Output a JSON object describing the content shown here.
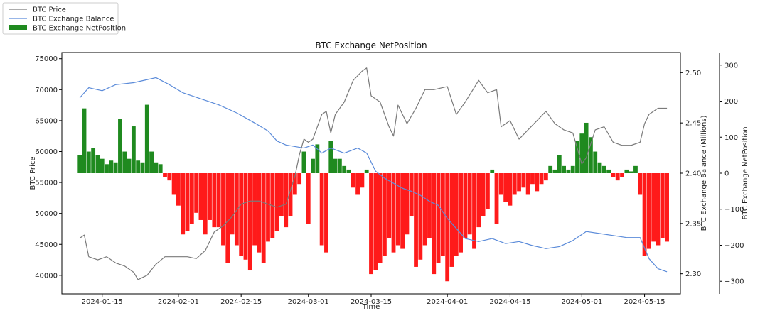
{
  "chart_data": {
    "type": "line",
    "title": "BTC Exchange NetPosition",
    "xlabel": "Time",
    "y_left_label": "BTC Price",
    "y_right_label": "BTC Exchange Balance (Millions)",
    "y_right2_label": "BTC Exchange NetPosition",
    "x_range": [
      "2024-01-06",
      "2024-05-23"
    ],
    "x_ticks": [
      "2024-01-15",
      "2024-02-01",
      "2024-02-15",
      "2024-03-01",
      "2024-03-15",
      "2024-04-01",
      "2024-04-15",
      "2024-05-01",
      "2024-05-15"
    ],
    "ylim_left": [
      37000,
      76000
    ],
    "y_left_ticks": [
      40000,
      45000,
      50000,
      55000,
      60000,
      65000,
      70000,
      75000
    ],
    "ylim_right": [
      2.28,
      2.52
    ],
    "y_right_ticks": [
      2.3,
      2.35,
      2.4,
      2.45,
      2.5
    ],
    "y_right_tick_labels": [
      "2.30",
      "2.35",
      "2.40",
      "2.45",
      "2.50"
    ],
    "ylim_right2": [
      -335,
      335
    ],
    "y_right2_ticks": [
      -300,
      -200,
      -100,
      0,
      100,
      200,
      300
    ],
    "y_right2_tick_labels": [
      "−300",
      "−200",
      "−100",
      "0",
      "100",
      "200",
      "300"
    ],
    "legend_position": "top-left outside",
    "grid": false,
    "colors": {
      "price": "#7a7a7a",
      "balance": "#5b8bd9",
      "netposition_positive": "#1f8a1f",
      "netposition_negative": "#ff1a1a"
    },
    "series": [
      {
        "name": "BTC Price",
        "axis": "left",
        "points": [
          [
            "2024-01-10",
            46000
          ],
          [
            "2024-01-11",
            46500
          ],
          [
            "2024-01-12",
            43000
          ],
          [
            "2024-01-14",
            42500
          ],
          [
            "2024-01-16",
            43000
          ],
          [
            "2024-01-18",
            42000
          ],
          [
            "2024-01-20",
            41500
          ],
          [
            "2024-01-22",
            40500
          ],
          [
            "2024-01-23",
            39300
          ],
          [
            "2024-01-25",
            40000
          ],
          [
            "2024-01-27",
            41800
          ],
          [
            "2024-01-29",
            43000
          ],
          [
            "2024-02-01",
            43000
          ],
          [
            "2024-02-03",
            43000
          ],
          [
            "2024-02-05",
            42700
          ],
          [
            "2024-02-07",
            44000
          ],
          [
            "2024-02-09",
            47000
          ],
          [
            "2024-02-11",
            48000
          ],
          [
            "2024-02-13",
            49500
          ],
          [
            "2024-02-15",
            51500
          ],
          [
            "2024-02-17",
            52000
          ],
          [
            "2024-02-19",
            52000
          ],
          [
            "2024-02-21",
            51500
          ],
          [
            "2024-02-23",
            51000
          ],
          [
            "2024-02-25",
            51500
          ],
          [
            "2024-02-27",
            56000
          ],
          [
            "2024-02-28",
            59500
          ],
          [
            "2024-02-29",
            62000
          ],
          [
            "2024-03-01",
            61500
          ],
          [
            "2024-03-02",
            62000
          ],
          [
            "2024-03-04",
            66000
          ],
          [
            "2024-03-05",
            66500
          ],
          [
            "2024-03-06",
            63000
          ],
          [
            "2024-03-07",
            66000
          ],
          [
            "2024-03-09",
            68000
          ],
          [
            "2024-03-11",
            71500
          ],
          [
            "2024-03-13",
            73000
          ],
          [
            "2024-03-14",
            73500
          ],
          [
            "2024-03-15",
            69000
          ],
          [
            "2024-03-17",
            68000
          ],
          [
            "2024-03-19",
            64000
          ],
          [
            "2024-03-20",
            62500
          ],
          [
            "2024-03-21",
            67500
          ],
          [
            "2024-03-23",
            64500
          ],
          [
            "2024-03-25",
            67000
          ],
          [
            "2024-03-27",
            70000
          ],
          [
            "2024-03-29",
            70000
          ],
          [
            "2024-04-01",
            70500
          ],
          [
            "2024-04-03",
            66000
          ],
          [
            "2024-04-05",
            68000
          ],
          [
            "2024-04-08",
            71500
          ],
          [
            "2024-04-10",
            69500
          ],
          [
            "2024-04-12",
            70000
          ],
          [
            "2024-04-13",
            64000
          ],
          [
            "2024-04-15",
            65000
          ],
          [
            "2024-04-17",
            62000
          ],
          [
            "2024-04-19",
            63500
          ],
          [
            "2024-04-21",
            65000
          ],
          [
            "2024-04-23",
            66500
          ],
          [
            "2024-04-25",
            64500
          ],
          [
            "2024-04-27",
            63500
          ],
          [
            "2024-04-29",
            63000
          ],
          [
            "2024-05-01",
            58000
          ],
          [
            "2024-05-02",
            59000
          ],
          [
            "2024-05-04",
            63500
          ],
          [
            "2024-05-06",
            64000
          ],
          [
            "2024-05-08",
            61500
          ],
          [
            "2024-05-10",
            61000
          ],
          [
            "2024-05-12",
            61000
          ],
          [
            "2024-05-14",
            61500
          ],
          [
            "2024-05-15",
            64500
          ],
          [
            "2024-05-16",
            66000
          ],
          [
            "2024-05-18",
            67000
          ],
          [
            "2024-05-20",
            67000
          ]
        ]
      },
      {
        "name": "BTC Exchange Balance",
        "axis": "right",
        "points": [
          [
            "2024-01-10",
            2.475
          ],
          [
            "2024-01-12",
            2.485
          ],
          [
            "2024-01-15",
            2.482
          ],
          [
            "2024-01-18",
            2.488
          ],
          [
            "2024-01-22",
            2.49
          ],
          [
            "2024-01-25",
            2.493
          ],
          [
            "2024-01-27",
            2.495
          ],
          [
            "2024-01-30",
            2.488
          ],
          [
            "2024-02-02",
            2.48
          ],
          [
            "2024-02-06",
            2.474
          ],
          [
            "2024-02-10",
            2.468
          ],
          [
            "2024-02-14",
            2.46
          ],
          [
            "2024-02-18",
            2.45
          ],
          [
            "2024-02-21",
            2.442
          ],
          [
            "2024-02-23",
            2.432
          ],
          [
            "2024-02-25",
            2.428
          ],
          [
            "2024-02-29",
            2.425
          ],
          [
            "2024-03-02",
            2.428
          ],
          [
            "2024-03-04",
            2.42
          ],
          [
            "2024-03-06",
            2.425
          ],
          [
            "2024-03-09",
            2.42
          ],
          [
            "2024-03-12",
            2.425
          ],
          [
            "2024-03-14",
            2.42
          ],
          [
            "2024-03-16",
            2.402
          ],
          [
            "2024-03-18",
            2.395
          ],
          [
            "2024-03-20",
            2.39
          ],
          [
            "2024-03-22",
            2.385
          ],
          [
            "2024-03-24",
            2.382
          ],
          [
            "2024-03-26",
            2.378
          ],
          [
            "2024-03-28",
            2.372
          ],
          [
            "2024-03-30",
            2.368
          ],
          [
            "2024-04-01",
            2.355
          ],
          [
            "2024-04-03",
            2.345
          ],
          [
            "2024-04-05",
            2.335
          ],
          [
            "2024-04-08",
            2.332
          ],
          [
            "2024-04-11",
            2.335
          ],
          [
            "2024-04-14",
            2.33
          ],
          [
            "2024-04-17",
            2.332
          ],
          [
            "2024-04-20",
            2.328
          ],
          [
            "2024-04-23",
            2.325
          ],
          [
            "2024-04-26",
            2.327
          ],
          [
            "2024-04-29",
            2.333
          ],
          [
            "2024-05-02",
            2.342
          ],
          [
            "2024-05-05",
            2.34
          ],
          [
            "2024-05-08",
            2.338
          ],
          [
            "2024-05-11",
            2.336
          ],
          [
            "2024-05-14",
            2.336
          ],
          [
            "2024-05-16",
            2.315
          ],
          [
            "2024-05-18",
            2.305
          ],
          [
            "2024-05-20",
            2.302
          ]
        ]
      },
      {
        "name": "BTC Exchange NetPosition",
        "axis": "right2",
        "type": "bar",
        "points": [
          [
            "2024-01-10",
            50
          ],
          [
            "2024-01-11",
            180
          ],
          [
            "2024-01-12",
            60
          ],
          [
            "2024-01-13",
            70
          ],
          [
            "2024-01-14",
            50
          ],
          [
            "2024-01-15",
            40
          ],
          [
            "2024-01-16",
            25
          ],
          [
            "2024-01-17",
            35
          ],
          [
            "2024-01-18",
            30
          ],
          [
            "2024-01-19",
            150
          ],
          [
            "2024-01-20",
            60
          ],
          [
            "2024-01-21",
            40
          ],
          [
            "2024-01-22",
            130
          ],
          [
            "2024-01-23",
            35
          ],
          [
            "2024-01-24",
            30
          ],
          [
            "2024-01-25",
            190
          ],
          [
            "2024-01-26",
            60
          ],
          [
            "2024-01-27",
            30
          ],
          [
            "2024-01-28",
            25
          ],
          [
            "2024-01-29",
            -10
          ],
          [
            "2024-01-30",
            -20
          ],
          [
            "2024-01-31",
            -60
          ],
          [
            "2024-02-01",
            -90
          ],
          [
            "2024-02-02",
            -170
          ],
          [
            "2024-02-03",
            -160
          ],
          [
            "2024-02-04",
            -140
          ],
          [
            "2024-02-05",
            -110
          ],
          [
            "2024-02-06",
            -130
          ],
          [
            "2024-02-07",
            -170
          ],
          [
            "2024-02-08",
            -130
          ],
          [
            "2024-02-09",
            -150
          ],
          [
            "2024-02-10",
            -150
          ],
          [
            "2024-02-11",
            -200
          ],
          [
            "2024-02-12",
            -250
          ],
          [
            "2024-02-13",
            -170
          ],
          [
            "2024-02-14",
            -200
          ],
          [
            "2024-02-15",
            -230
          ],
          [
            "2024-02-16",
            -240
          ],
          [
            "2024-02-17",
            -270
          ],
          [
            "2024-02-18",
            -200
          ],
          [
            "2024-02-19",
            -220
          ],
          [
            "2024-02-20",
            -250
          ],
          [
            "2024-02-21",
            -190
          ],
          [
            "2024-02-22",
            -180
          ],
          [
            "2024-02-23",
            -160
          ],
          [
            "2024-02-24",
            -120
          ],
          [
            "2024-02-25",
            -150
          ],
          [
            "2024-02-26",
            -120
          ],
          [
            "2024-02-27",
            -60
          ],
          [
            "2024-02-28",
            -30
          ],
          [
            "2024-02-29",
            60
          ],
          [
            "2024-03-01",
            -140
          ],
          [
            "2024-03-02",
            40
          ],
          [
            "2024-03-03",
            80
          ],
          [
            "2024-03-04",
            -200
          ],
          [
            "2024-03-05",
            -220
          ],
          [
            "2024-03-06",
            90
          ],
          [
            "2024-03-07",
            40
          ],
          [
            "2024-03-08",
            40
          ],
          [
            "2024-03-09",
            20
          ],
          [
            "2024-03-10",
            10
          ],
          [
            "2024-03-11",
            -40
          ],
          [
            "2024-03-12",
            -60
          ],
          [
            "2024-03-13",
            -40
          ],
          [
            "2024-03-14",
            10
          ],
          [
            "2024-03-15",
            -280
          ],
          [
            "2024-03-16",
            -270
          ],
          [
            "2024-03-17",
            -250
          ],
          [
            "2024-03-18",
            -230
          ],
          [
            "2024-03-19",
            -180
          ],
          [
            "2024-03-20",
            -220
          ],
          [
            "2024-03-21",
            -200
          ],
          [
            "2024-03-22",
            -210
          ],
          [
            "2024-03-23",
            -170
          ],
          [
            "2024-03-24",
            -120
          ],
          [
            "2024-03-25",
            -260
          ],
          [
            "2024-03-26",
            -240
          ],
          [
            "2024-03-27",
            -200
          ],
          [
            "2024-03-28",
            -180
          ],
          [
            "2024-03-29",
            -280
          ],
          [
            "2024-03-30",
            -250
          ],
          [
            "2024-03-31",
            -230
          ],
          [
            "2024-04-01",
            -300
          ],
          [
            "2024-04-02",
            -260
          ],
          [
            "2024-04-03",
            -230
          ],
          [
            "2024-04-04",
            -220
          ],
          [
            "2024-04-05",
            -180
          ],
          [
            "2024-04-06",
            -170
          ],
          [
            "2024-04-07",
            -210
          ],
          [
            "2024-04-08",
            -150
          ],
          [
            "2024-04-09",
            -120
          ],
          [
            "2024-04-10",
            -100
          ],
          [
            "2024-04-11",
            10
          ],
          [
            "2024-04-12",
            -140
          ],
          [
            "2024-04-13",
            -60
          ],
          [
            "2024-04-14",
            -80
          ],
          [
            "2024-04-15",
            -90
          ],
          [
            "2024-04-16",
            -60
          ],
          [
            "2024-04-17",
            -50
          ],
          [
            "2024-04-18",
            -40
          ],
          [
            "2024-04-19",
            -60
          ],
          [
            "2024-04-20",
            -30
          ],
          [
            "2024-04-21",
            -50
          ],
          [
            "2024-04-22",
            -30
          ],
          [
            "2024-04-23",
            -20
          ],
          [
            "2024-04-24",
            20
          ],
          [
            "2024-04-25",
            10
          ],
          [
            "2024-04-26",
            50
          ],
          [
            "2024-04-27",
            20
          ],
          [
            "2024-04-28",
            10
          ],
          [
            "2024-04-29",
            20
          ],
          [
            "2024-04-30",
            90
          ],
          [
            "2024-05-01",
            110
          ],
          [
            "2024-05-02",
            140
          ],
          [
            "2024-05-03",
            100
          ],
          [
            "2024-05-04",
            60
          ],
          [
            "2024-05-05",
            30
          ],
          [
            "2024-05-06",
            20
          ],
          [
            "2024-05-07",
            10
          ],
          [
            "2024-05-08",
            -10
          ],
          [
            "2024-05-09",
            -20
          ],
          [
            "2024-05-10",
            -10
          ],
          [
            "2024-05-11",
            10
          ],
          [
            "2024-05-12",
            5
          ],
          [
            "2024-05-13",
            20
          ],
          [
            "2024-05-14",
            -60
          ],
          [
            "2024-05-15",
            -230
          ],
          [
            "2024-05-16",
            -210
          ],
          [
            "2024-05-17",
            -190
          ],
          [
            "2024-05-18",
            -200
          ],
          [
            "2024-05-19",
            -180
          ],
          [
            "2024-05-20",
            -190
          ]
        ]
      }
    ]
  }
}
